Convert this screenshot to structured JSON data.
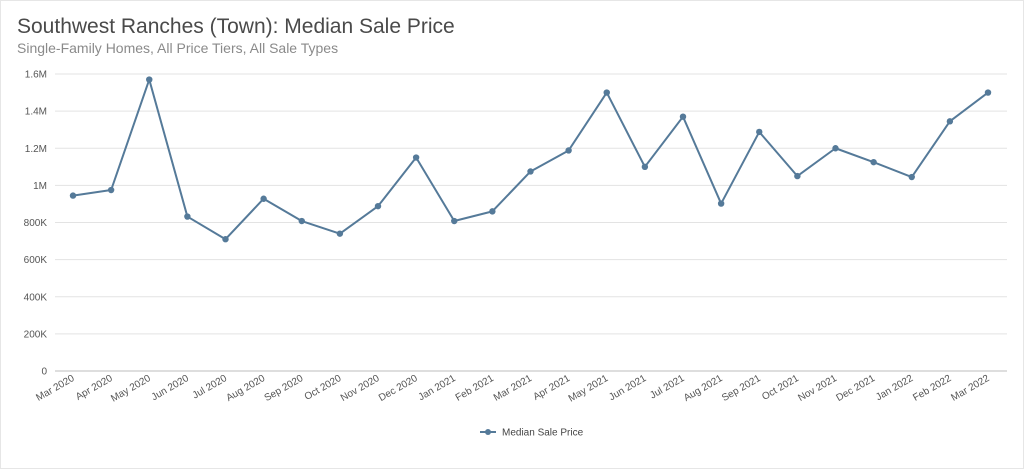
{
  "chart_data": {
    "type": "line",
    "title": "Southwest Ranches (Town): Median Sale Price",
    "subtitle": "Single-Family Homes, All Price Tiers, All Sale Types",
    "xlabel": "",
    "ylabel": "",
    "ylim": [
      0,
      1600000
    ],
    "y_ticks": [
      {
        "value": 0,
        "label": "0"
      },
      {
        "value": 200000,
        "label": "200K"
      },
      {
        "value": 400000,
        "label": "400K"
      },
      {
        "value": 600000,
        "label": "600K"
      },
      {
        "value": 800000,
        "label": "800K"
      },
      {
        "value": 1000000,
        "label": "1M"
      },
      {
        "value": 1200000,
        "label": "1.2M"
      },
      {
        "value": 1400000,
        "label": "1.4M"
      },
      {
        "value": 1600000,
        "label": "1.6M"
      }
    ],
    "grid": true,
    "legend_position": "bottom-center",
    "categories": [
      "Mar 2020",
      "Apr 2020",
      "May 2020",
      "Jun 2020",
      "Jul 2020",
      "Aug 2020",
      "Sep 2020",
      "Oct 2020",
      "Nov 2020",
      "Dec 2020",
      "Jan 2021",
      "Feb 2021",
      "Mar 2021",
      "Apr 2021",
      "May 2021",
      "Jun 2021",
      "Jul 2021",
      "Aug 2021",
      "Sep 2021",
      "Oct 2021",
      "Nov 2021",
      "Dec 2021",
      "Jan 2022",
      "Feb 2022",
      "Mar 2022"
    ],
    "series": [
      {
        "name": "Median Sale Price",
        "color": "#557a99",
        "values": [
          945000,
          975000,
          1570000,
          832000,
          710000,
          928000,
          808000,
          740000,
          888000,
          1150000,
          808000,
          860000,
          1075000,
          1188000,
          1500000,
          1100000,
          1370000,
          902000,
          1288000,
          1050000,
          1200000,
          1125000,
          1045000,
          1345000,
          1500000
        ]
      }
    ]
  }
}
